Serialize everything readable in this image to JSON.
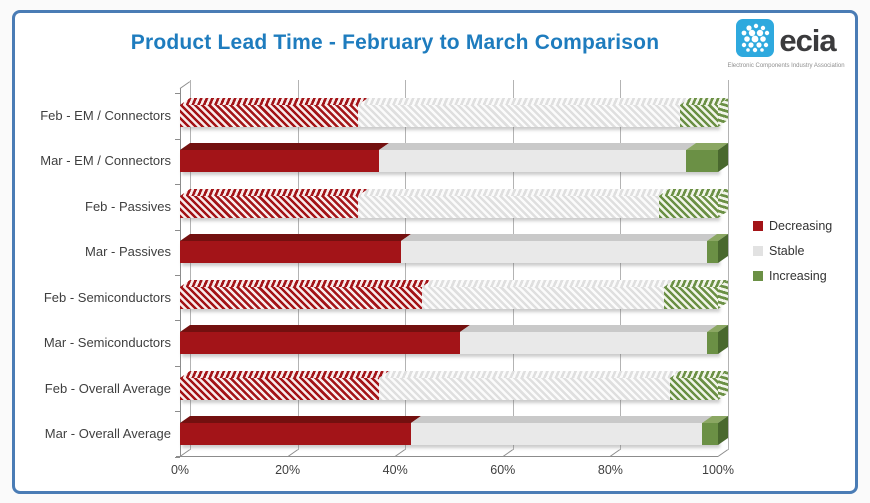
{
  "title": "Product Lead Time - February to March Comparison",
  "logo": {
    "name": "ecia",
    "caption": "Electronic Components Industry Association",
    "icon_color": "#2ea9de"
  },
  "palette": {
    "decreasing": {
      "solid": "#a31418",
      "top": "#73100f",
      "side": "#7e1114",
      "hatch_bg": "#f8ecec"
    },
    "stable": {
      "solid": "#e9e9e9",
      "top": "#c9c9c9",
      "side": "#d6d6d6",
      "hatch_bg": "#fbfbfb",
      "hatch_fg": "#dfdfdf"
    },
    "increasing": {
      "solid": "#6b9045",
      "top": "#8ba763",
      "side": "#49682e",
      "hatch_bg": "#f2f5ea"
    },
    "grid": "#b3b3b3",
    "axis": "#8c8c8c",
    "title": "#1e7cbe",
    "border": "#4a7cb5"
  },
  "legend": [
    {
      "label": "Decreasing",
      "color": "#a31418"
    },
    {
      "label": "Stable",
      "color": "#e2e2e2"
    },
    {
      "label": "Increasing",
      "color": "#6b9045"
    }
  ],
  "chart_data": {
    "type": "bar",
    "orientation": "horizontal",
    "stacked": true,
    "unit": "%",
    "style_note": "3D-style bars; Feb rows drawn hatched, Mar rows drawn solid",
    "categories": [
      "Feb - EM / Connectors",
      "Mar - EM / Connectors",
      "Feb - Passives",
      "Mar - Passives",
      "Feb - Semiconductors",
      "Mar - Semiconductors",
      "Feb - Overall Average",
      "Mar - Overall Average"
    ],
    "series": [
      {
        "name": "Decreasing",
        "values": [
          33,
          37,
          33,
          41,
          45,
          52,
          37,
          43
        ]
      },
      {
        "name": "Stable",
        "values": [
          60,
          57,
          56,
          57,
          45,
          46,
          54,
          54
        ]
      },
      {
        "name": "Increasing",
        "values": [
          7,
          6,
          11,
          2,
          10,
          2,
          9,
          3
        ]
      }
    ],
    "xlim": [
      0,
      100
    ],
    "x_ticks": [
      "0%",
      "20%",
      "40%",
      "60%",
      "80%",
      "100%"
    ],
    "grid": true,
    "legend_position": "right"
  }
}
